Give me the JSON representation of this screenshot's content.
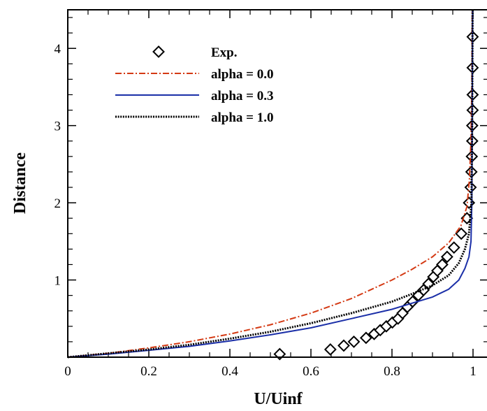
{
  "chart_data": {
    "type": "line",
    "title": "",
    "xlabel": "U/Uinf",
    "ylabel": "Distance",
    "xlim": [
      0,
      1.04
    ],
    "ylim": [
      0,
      4.5
    ],
    "xticks": [
      0,
      0.2,
      0.4,
      0.6,
      0.8,
      1
    ],
    "xtick_labels": [
      "0",
      "0.2",
      "0.4",
      "0.6",
      "0.8",
      "1"
    ],
    "yticks": [
      1,
      2,
      3,
      4
    ],
    "ytick_labels": [
      "1",
      "2",
      "3",
      "4"
    ],
    "grid": false,
    "legend_position": "top-left",
    "series": [
      {
        "name": "Exp.",
        "style": "markers",
        "marker": "diamond",
        "color": "#000000",
        "x": [
          0.523,
          0.648,
          0.681,
          0.706,
          0.736,
          0.756,
          0.771,
          0.786,
          0.801,
          0.815,
          0.826,
          0.838,
          0.851,
          0.865,
          0.878,
          0.89,
          0.902,
          0.912,
          0.924,
          0.936,
          0.953,
          0.971,
          0.985,
          0.99,
          0.994,
          0.996,
          0.997,
          0.998,
          0.998,
          0.999,
          0.999,
          0.999,
          0.999
        ],
        "y": [
          0.04,
          0.1,
          0.15,
          0.2,
          0.25,
          0.3,
          0.35,
          0.4,
          0.45,
          0.5,
          0.57,
          0.65,
          0.72,
          0.8,
          0.87,
          0.95,
          1.04,
          1.12,
          1.2,
          1.3,
          1.42,
          1.6,
          1.8,
          2.0,
          2.2,
          2.4,
          2.6,
          2.8,
          3.0,
          3.2,
          3.4,
          3.75,
          4.15
        ]
      },
      {
        "name": "alpha = 0.0",
        "style": "dashdot",
        "color": "#d43a14",
        "x": [
          0,
          0.1,
          0.2,
          0.3,
          0.4,
          0.5,
          0.6,
          0.7,
          0.8,
          0.85,
          0.9,
          0.94,
          0.97,
          0.985,
          0.991,
          0.995,
          0.997,
          0.998
        ],
        "y": [
          0,
          0.05,
          0.12,
          0.2,
          0.3,
          0.42,
          0.57,
          0.76,
          1.0,
          1.14,
          1.3,
          1.48,
          1.7,
          1.95,
          2.3,
          2.8,
          3.5,
          4.5
        ]
      },
      {
        "name": "alpha = 0.3",
        "style": "solid",
        "color": "#1b2fa8",
        "x": [
          0,
          0.1,
          0.2,
          0.3,
          0.4,
          0.5,
          0.6,
          0.7,
          0.8,
          0.85,
          0.9,
          0.94,
          0.965,
          0.98,
          0.99,
          0.995,
          0.997,
          0.998,
          0.999
        ],
        "y": [
          0,
          0.04,
          0.09,
          0.14,
          0.21,
          0.29,
          0.38,
          0.5,
          0.62,
          0.7,
          0.78,
          0.88,
          1.0,
          1.15,
          1.3,
          1.5,
          2.0,
          3.0,
          4.5
        ]
      },
      {
        "name": "alpha = 1.0",
        "style": "dotted",
        "color": "#000000",
        "x": [
          0,
          0.1,
          0.2,
          0.3,
          0.4,
          0.5,
          0.6,
          0.7,
          0.8,
          0.85,
          0.9,
          0.94,
          0.965,
          0.98,
          0.99,
          0.996,
          0.998,
          0.999
        ],
        "y": [
          0,
          0.05,
          0.1,
          0.16,
          0.24,
          0.33,
          0.44,
          0.57,
          0.72,
          0.82,
          0.93,
          1.06,
          1.22,
          1.4,
          1.6,
          2.0,
          3.0,
          4.5
        ]
      }
    ]
  }
}
